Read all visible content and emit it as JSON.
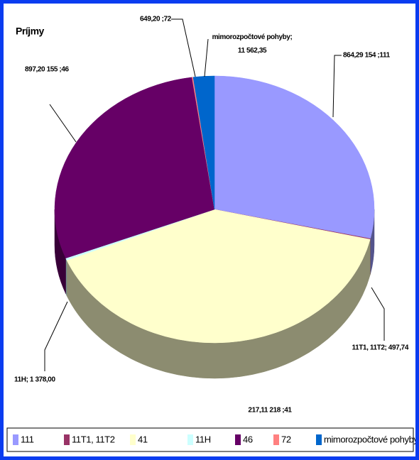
{
  "chart_data": {
    "type": "pie3d",
    "title": "Príjmy",
    "categories": [
      "111",
      "11T1, 11T2",
      "41",
      "11H",
      "46",
      "72",
      "mimorozpočtové pohyby"
    ],
    "values": [
      154864.29,
      497.74,
      218217.11,
      1378.0,
      155897.2,
      649.2,
      11562.35
    ],
    "value_labels": [
      "864,29 154 ;111",
      "11T1, 11T2; 497,74",
      "217,11 218 ;41",
      "11H; 1 378,00",
      "897,20 155 ;46",
      "649,20 ;72",
      "mimorozpočtové pohyby; 11 562,35"
    ],
    "colors": [
      "#9999ff",
      "#993366",
      "#ffffcc",
      "#ccffff",
      "#660066",
      "#ff8080",
      "#0066cc"
    ],
    "legend": "bottom"
  }
}
